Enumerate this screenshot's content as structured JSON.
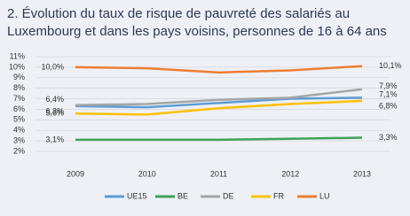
{
  "chart_data": {
    "type": "line",
    "title_lines": [
      "2.  Évolution du taux de risque de pauvreté des salariés au",
      "Luxembourg et dans les pays voisins, personnes de 16 à 64 ans"
    ],
    "categories": [
      "2009",
      "2010",
      "2011",
      "2012",
      "2013"
    ],
    "ylim": [
      2,
      11
    ],
    "yticks": [
      {
        "value": 2,
        "label": "2%"
      },
      {
        "value": 3,
        "label": "3%"
      },
      {
        "value": 4,
        "label": "4%"
      },
      {
        "value": 5,
        "label": "5%"
      },
      {
        "value": 6,
        "label": "6%"
      },
      {
        "value": 7,
        "label": "7%"
      },
      {
        "value": 8,
        "label": "8%"
      },
      {
        "value": 9,
        "label": "9%"
      },
      {
        "value": 10,
        "label": "10%"
      },
      {
        "value": 11,
        "label": "11%"
      }
    ],
    "grid": true,
    "series": [
      {
        "name": "UE15",
        "color": "#5b9bd5",
        "values": [
          6.3,
          6.2,
          6.6,
          7.0,
          7.1
        ],
        "value_labels": [
          "6,3%",
          null,
          null,
          null,
          "7,1%"
        ]
      },
      {
        "name": "BE",
        "color": "#3aa357",
        "values": [
          3.1,
          3.1,
          3.1,
          3.2,
          3.3
        ],
        "value_labels": [
          "3,1%",
          null,
          null,
          null,
          "3,3%"
        ]
      },
      {
        "name": "DE",
        "color": "#a5a5a5",
        "values": [
          6.4,
          6.5,
          6.9,
          7.1,
          7.9
        ],
        "value_labels": [
          "6,4%",
          null,
          null,
          null,
          "7,9%"
        ]
      },
      {
        "name": "FR",
        "color": "#ffc000",
        "values": [
          5.6,
          5.5,
          6.1,
          6.5,
          6.8
        ],
        "value_labels": [
          "5,6%",
          null,
          null,
          null,
          "6,8%"
        ]
      },
      {
        "name": "LU",
        "color": "#ed7d31",
        "values": [
          10.0,
          9.9,
          9.5,
          9.7,
          10.1
        ],
        "value_labels": [
          "10,0%",
          null,
          null,
          null,
          "10,1%"
        ]
      }
    ]
  }
}
